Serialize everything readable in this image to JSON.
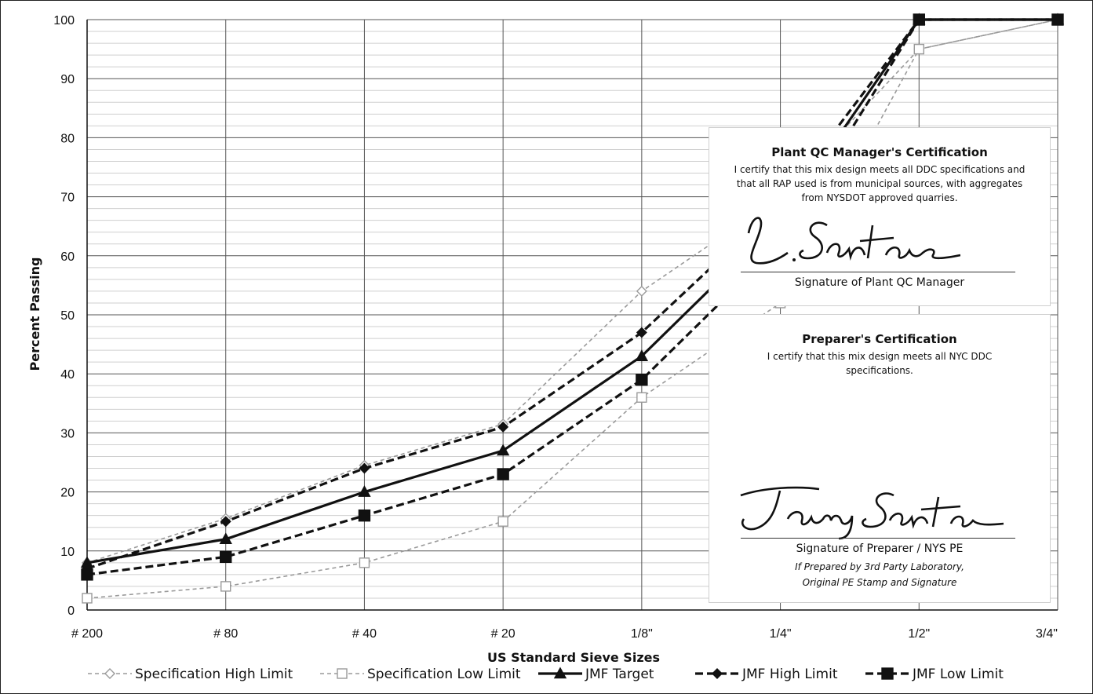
{
  "chart_data": {
    "type": "line",
    "title": "",
    "xlabel": "US Standard Sieve Sizes",
    "ylabel": "Percent Passing",
    "categories": [
      "# 200",
      "# 80",
      "# 40",
      "# 20",
      "1/8\"",
      "1/4\"",
      "1/2\"",
      "3/4\""
    ],
    "ylim": [
      0,
      100
    ],
    "yticks": [
      0,
      10,
      20,
      30,
      40,
      50,
      60,
      70,
      80,
      90,
      100
    ],
    "grid": true,
    "minor_grid_step": 2,
    "legend_position": "bottom",
    "series": [
      {
        "name": "Specification High Limit",
        "values": [
          8,
          15.5,
          24.5,
          31.5,
          54,
          70,
          95,
          100
        ]
      },
      {
        "name": "Specification Low Limit",
        "values": [
          2,
          4,
          8,
          15,
          36,
          52,
          95,
          100
        ]
      },
      {
        "name": "JMF Target",
        "values": [
          8,
          12,
          20,
          27,
          43,
          66,
          100,
          100
        ]
      },
      {
        "name": "JMF High Limit",
        "values": [
          7,
          15,
          24,
          31,
          47,
          69,
          100,
          100
        ]
      },
      {
        "name": "JMF Low Limit",
        "values": [
          6,
          9,
          16,
          23,
          39,
          62,
          100,
          100
        ]
      }
    ]
  },
  "certifications": {
    "plant": {
      "title": "Plant QC Manager's Certification",
      "text": "I certify that  this mix design meets all DDC specifications and that all RAP used is from municipal sources, with aggregates from NYSDOT approved quarries.",
      "signature_label": "Signature of Plant QC Manager"
    },
    "preparer": {
      "title": "Preparer's Certification",
      "text": "I certify that this  mix design meets all NYC DDC specifications.",
      "signature_label": "Signature of Preparer / NYS PE",
      "note_line1": "If Prepared by 3rd Party Laboratory,",
      "note_line2": "Original PE Stamp and Signature"
    }
  },
  "colors": {
    "spec": "#9a9a9a",
    "jmf": "#111111",
    "grid": "#cfcfcf",
    "grid_major": "#555555"
  }
}
